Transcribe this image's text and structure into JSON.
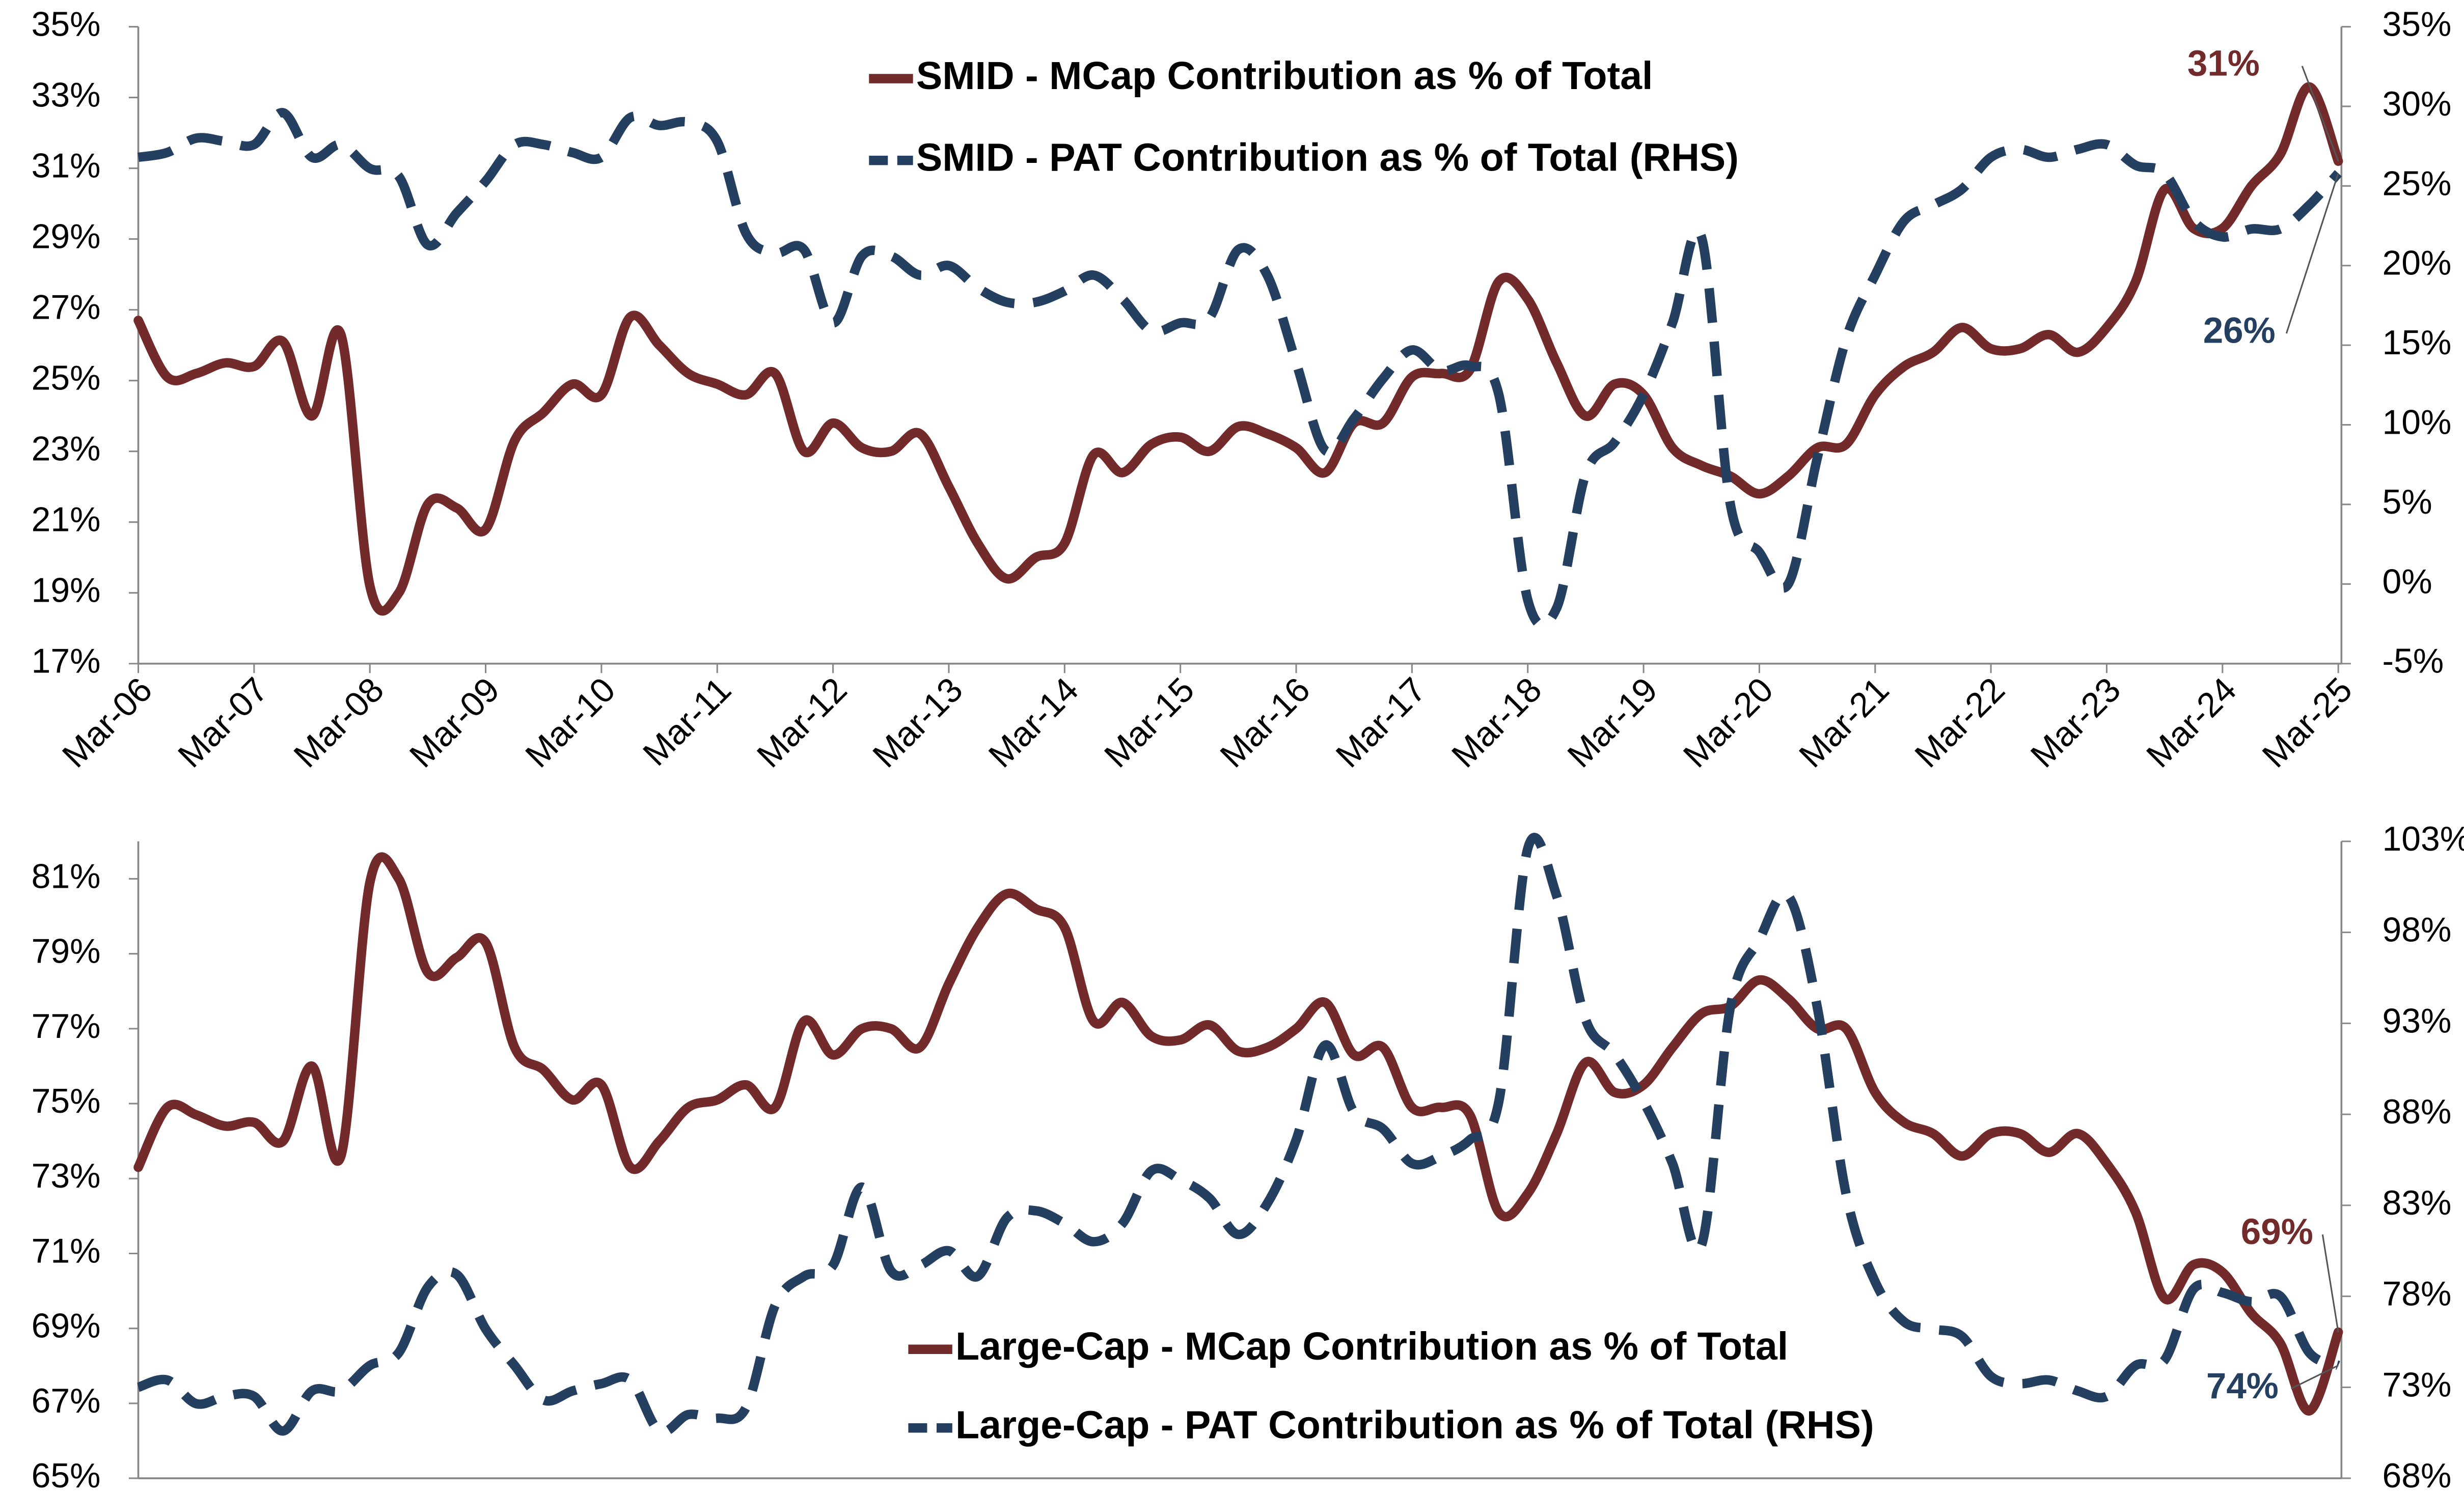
{
  "chart_data": [
    {
      "type": "line",
      "legend": "upper center",
      "grid": false,
      "categories": [
        "Mar-06",
        null,
        null,
        null,
        "Mar-07",
        null,
        null,
        null,
        "Mar-08",
        null,
        null,
        null,
        "Mar-09",
        null,
        null,
        null,
        "Mar-10",
        null,
        null,
        null,
        "Mar-11",
        null,
        null,
        null,
        "Mar-12",
        null,
        null,
        null,
        "Mar-13",
        null,
        null,
        null,
        "Mar-14",
        null,
        null,
        null,
        "Mar-15",
        null,
        null,
        null,
        "Mar-16",
        null,
        null,
        null,
        "Mar-17",
        null,
        null,
        null,
        "Mar-18",
        null,
        null,
        null,
        "Mar-19",
        null,
        null,
        null,
        "Mar-20",
        null,
        null,
        null,
        "Mar-21",
        null,
        null,
        null,
        "Mar-22",
        null,
        null,
        null,
        "Mar-23",
        null,
        null,
        null,
        "Mar-24",
        null,
        null,
        null,
        "Mar-25"
      ],
      "ylim": [
        17,
        35
      ],
      "yticks": [
        {
          "value": 17,
          "label": "17%"
        },
        {
          "value": 19,
          "label": "19%"
        },
        {
          "value": 21,
          "label": "21%"
        },
        {
          "value": 23,
          "label": "23%"
        },
        {
          "value": 25,
          "label": "25%"
        },
        {
          "value": 27,
          "label": "27%"
        },
        {
          "value": 29,
          "label": "29%"
        },
        {
          "value": 31,
          "label": "31%"
        },
        {
          "value": 33,
          "label": "33%"
        },
        {
          "value": 35,
          "label": "35%"
        }
      ],
      "y2lim": [
        -5,
        35
      ],
      "y2ticks": [
        {
          "value": -5,
          "label": "-5%"
        },
        {
          "value": 0,
          "label": "0%"
        },
        {
          "value": 5,
          "label": "5%"
        },
        {
          "value": 10,
          "label": "10%"
        },
        {
          "value": 15,
          "label": "15%"
        },
        {
          "value": 20,
          "label": "20%"
        },
        {
          "value": 25,
          "label": "25%"
        },
        {
          "value": 30,
          "label": "30%"
        },
        {
          "value": 35,
          "label": "35%"
        }
      ],
      "series": [
        {
          "name": "SMID - MCap Contribution as % of Total",
          "color": "#722a2a",
          "style": "solid",
          "axis": "y",
          "end_label": "31%",
          "values": [
            26.7,
            25.1,
            25.2,
            25.5,
            25.4,
            26.1,
            24.0,
            26.3,
            19.2,
            19.0,
            21.5,
            21.4,
            20.8,
            23.3,
            24.1,
            24.9,
            24.6,
            26.8,
            26.0,
            25.2,
            24.9,
            24.6,
            25.2,
            23.0,
            23.8,
            23.1,
            23.0,
            23.5,
            22.0,
            20.4,
            19.4,
            20.0,
            20.4,
            22.9,
            22.4,
            23.2,
            23.4,
            23.0,
            23.7,
            23.5,
            23.1,
            22.4,
            23.8,
            23.8,
            25.1,
            25.2,
            25.3,
            27.8,
            27.3,
            25.5,
            24.0,
            24.9,
            24.6,
            23.1,
            22.6,
            22.3,
            21.8,
            22.3,
            23.1,
            23.2,
            24.6,
            25.4,
            25.8,
            26.5,
            25.9,
            25.9,
            26.3,
            25.8,
            26.5,
            27.8,
            30.4,
            29.3,
            29.3,
            30.5,
            31.4,
            33.3,
            31.2
          ]
        },
        {
          "name": "SMID - PAT Contribution as % of Total (RHS)",
          "color": "#243f60",
          "style": "dashed",
          "axis": "y2",
          "end_label": "26%",
          "values": [
            26.8,
            27.1,
            28.0,
            27.8,
            27.6,
            29.6,
            26.8,
            27.6,
            26.1,
            25.6,
            21.3,
            23.3,
            25.3,
            27.6,
            27.6,
            27.1,
            26.8,
            29.3,
            28.8,
            29.0,
            27.8,
            22.0,
            20.8,
            21.0,
            16.4,
            20.6,
            20.6,
            19.4,
            20.0,
            18.6,
            17.7,
            17.7,
            18.4,
            19.4,
            17.9,
            15.9,
            16.4,
            16.7,
            21.0,
            19.4,
            13.9,
            8.4,
            10.4,
            12.9,
            14.7,
            13.4,
            13.7,
            11.9,
            -1.0,
            -1.5,
            6.9,
            8.9,
            11.9,
            16.4,
            21.8,
            5.0,
            2.0,
            0.0,
            7.9,
            15.4,
            19.4,
            22.8,
            23.8,
            24.8,
            26.8,
            27.3,
            26.8,
            27.3,
            27.6,
            26.3,
            25.8,
            22.8,
            21.8,
            22.3,
            22.3,
            23.8,
            25.8
          ]
        }
      ]
    },
    {
      "type": "line",
      "legend": "lower center",
      "grid": false,
      "ylim": [
        65,
        82
      ],
      "yticks": [
        {
          "value": 65,
          "label": "65%"
        },
        {
          "value": 67,
          "label": "67%"
        },
        {
          "value": 69,
          "label": "69%"
        },
        {
          "value": 71,
          "label": "71%"
        },
        {
          "value": 73,
          "label": "73%"
        },
        {
          "value": 75,
          "label": "75%"
        },
        {
          "value": 77,
          "label": "77%"
        },
        {
          "value": 79,
          "label": "79%"
        },
        {
          "value": 81,
          "label": "81%"
        }
      ],
      "y2lim": [
        68,
        103
      ],
      "y2ticks": [
        {
          "value": 68,
          "label": "68%"
        },
        {
          "value": 73,
          "label": "73%"
        },
        {
          "value": 78,
          "label": "78%"
        },
        {
          "value": 83,
          "label": "83%"
        },
        {
          "value": 88,
          "label": "88%"
        },
        {
          "value": 93,
          "label": "93%"
        },
        {
          "value": 98,
          "label": "98%"
        },
        {
          "value": 103,
          "label": "103%"
        }
      ],
      "series": [
        {
          "name": "Large-Cap - MCap Contribution as % of Total",
          "color": "#722a2a",
          "style": "solid",
          "axis": "y",
          "end_label": "69%",
          "values": [
            73.3,
            74.9,
            74.7,
            74.4,
            74.5,
            74.0,
            76.0,
            73.6,
            80.9,
            81.0,
            78.5,
            78.9,
            79.3,
            76.5,
            75.9,
            75.1,
            75.5,
            73.3,
            74.0,
            74.9,
            75.1,
            75.5,
            74.9,
            77.2,
            76.3,
            77.0,
            77.0,
            76.5,
            78.2,
            79.7,
            80.6,
            80.2,
            79.7,
            77.2,
            77.7,
            76.8,
            76.7,
            77.1,
            76.4,
            76.5,
            77.0,
            77.7,
            76.3,
            76.5,
            74.9,
            74.9,
            74.7,
            72.1,
            72.6,
            74.2,
            76.1,
            75.3,
            75.5,
            76.5,
            77.4,
            77.6,
            78.3,
            77.8,
            77.0,
            77.0,
            75.3,
            74.5,
            74.2,
            73.6,
            74.2,
            74.2,
            73.7,
            74.2,
            73.4,
            72.1,
            69.8,
            70.7,
            70.5,
            69.4,
            68.6,
            66.8,
            68.9
          ]
        },
        {
          "name": "Large-Cap - PAT Contribution as % of Total (RHS)",
          "color": "#243f60",
          "style": "dashed",
          "axis": "y2",
          "end_label": "74%",
          "values": [
            73.0,
            73.4,
            72.1,
            72.5,
            72.5,
            70.6,
            72.8,
            72.8,
            74.2,
            74.9,
            78.5,
            79.2,
            76.2,
            74.2,
            72.3,
            72.8,
            73.2,
            73.4,
            70.6,
            71.5,
            71.3,
            71.9,
            77.5,
            79.1,
            79.7,
            84.0,
            79.4,
            79.7,
            80.5,
            79.1,
            82.3,
            82.7,
            82.0,
            81.0,
            82.0,
            84.9,
            84.4,
            83.4,
            81.4,
            83.1,
            86.6,
            91.8,
            88.1,
            87.2,
            85.3,
            85.7,
            86.6,
            88.7,
            102.6,
            100.0,
            93.2,
            91.3,
            88.7,
            85.3,
            80.8,
            93.9,
            97.6,
            100.0,
            93.9,
            83.6,
            78.8,
            76.6,
            76.2,
            75.8,
            73.6,
            73.2,
            73.4,
            72.8,
            72.5,
            74.2,
            74.5,
            78.4,
            78.2,
            77.7,
            78.0,
            74.9,
            74.2
          ]
        }
      ]
    }
  ]
}
